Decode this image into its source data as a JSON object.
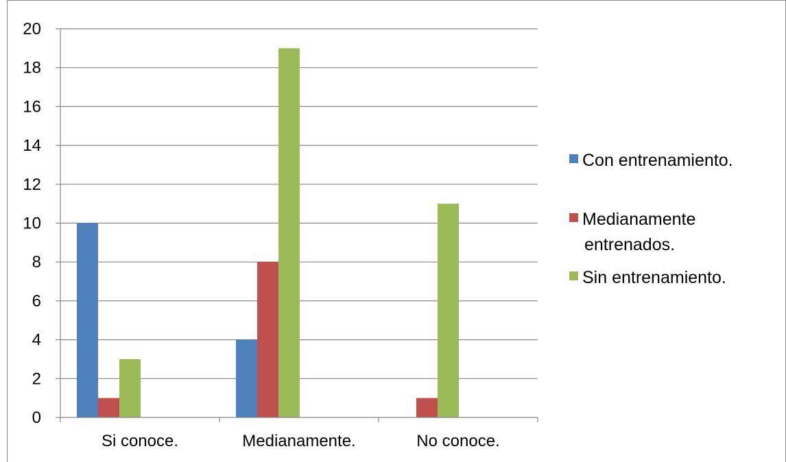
{
  "chart_data": {
    "type": "bar",
    "categories": [
      "Si conoce.",
      "Medianamente.",
      "No conoce."
    ],
    "series": [
      {
        "name": "Con entrenamiento.",
        "values": [
          10,
          4,
          0
        ],
        "color": "#4F81BD"
      },
      {
        "name": "Medianamente entrenados.",
        "legend_lines": [
          "Medianamente",
          "entrenados."
        ],
        "values": [
          1,
          8,
          1
        ],
        "color": "#C0504D"
      },
      {
        "name": "Sin entrenamiento.",
        "values": [
          3,
          19,
          11
        ],
        "color": "#9BBB59"
      }
    ],
    "ylim": [
      0,
      20
    ],
    "y_ticks": [
      "0",
      "2",
      "4",
      "6",
      "8",
      "10",
      "12",
      "14",
      "16",
      "18",
      "20"
    ],
    "grid": true,
    "legend_position": "right"
  }
}
